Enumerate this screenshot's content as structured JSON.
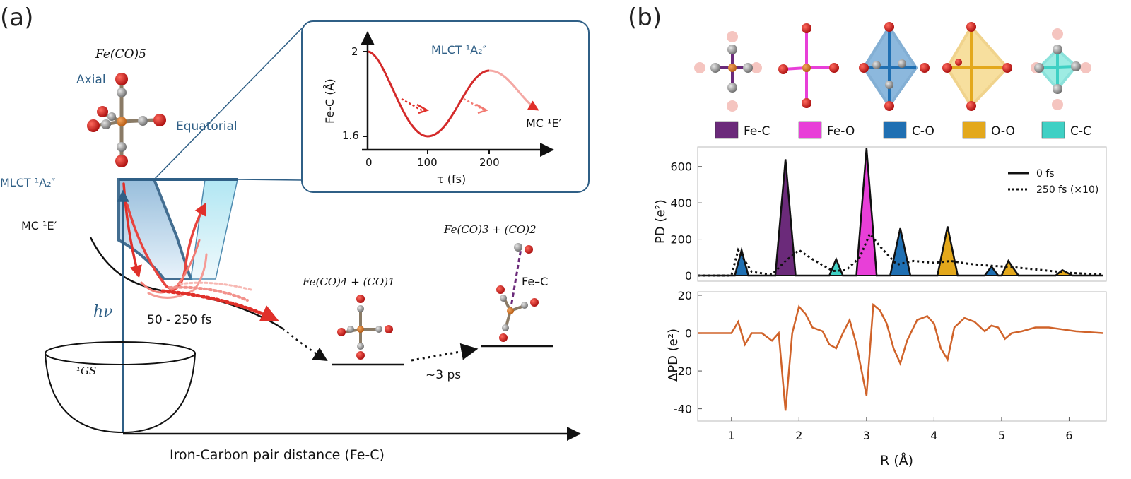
{
  "panel_a": {
    "label": "(a)",
    "molecule_title": "Fe(CO)5",
    "axial_label": "Axial",
    "equatorial_label": "Equatorial",
    "mlct_label": "MLCT ¹A₂″",
    "mc_label": "MC ¹E′",
    "hv_label": "hν",
    "time_label": "50 - 250 fs",
    "gs_label": "¹GS",
    "x_axis_label": "Iron-Carbon pair distance (Fe-C)",
    "product1_label": "Fe(CO)4 + (CO)1",
    "product2_label": "Fe(CO)3 + (CO)2",
    "fec_label": "Fe–C",
    "ps_label": "~3 ps",
    "inset": {
      "ylabel": "Fe-C (Å)",
      "xlabel": "τ (fs)",
      "y_ticks": [
        "2",
        "1.6"
      ],
      "x_ticks": [
        "0",
        "100",
        "200"
      ],
      "mlct_label": "MLCT ¹A₂″",
      "mc_label": "MC ¹E′"
    }
  },
  "panel_b": {
    "label": "(b)",
    "legend": [
      {
        "label": "Fe-C",
        "color": "#6b2a7a"
      },
      {
        "label": "Fe-O",
        "color": "#e83fd8"
      },
      {
        "label": "C-O",
        "color": "#1f6fb2"
      },
      {
        "label": "O-O",
        "color": "#e3a81c"
      },
      {
        "label": "C-C",
        "color": "#3fd0c4"
      }
    ]
  },
  "chart_data": [
    {
      "type": "area",
      "ylabel": "PD (e²)",
      "ylim": [
        0,
        700
      ],
      "y_ticks": [
        "600",
        "400",
        "200",
        "0"
      ],
      "series": [
        {
          "name": "0 fs",
          "x": [
            0.5,
            1.05,
            1.15,
            1.25,
            1.65,
            1.8,
            1.95,
            2.45,
            2.55,
            2.65,
            2.85,
            3.0,
            3.15,
            3.35,
            3.5,
            3.65,
            4.05,
            4.2,
            4.35,
            4.75,
            4.85,
            4.95,
            5.0,
            5.1,
            5.25,
            5.8,
            5.9,
            6.05,
            6.5
          ],
          "y": [
            0,
            0,
            140,
            0,
            0,
            640,
            0,
            0,
            90,
            0,
            0,
            700,
            0,
            0,
            260,
            0,
            0,
            270,
            0,
            0,
            50,
            0,
            0,
            80,
            0,
            0,
            30,
            0,
            0
          ]
        },
        {
          "name": "250 fs (×10)",
          "x": [
            0.5,
            1.0,
            1.1,
            1.3,
            1.6,
            1.8,
            2.0,
            2.2,
            2.5,
            2.7,
            2.9,
            3.05,
            3.2,
            3.45,
            3.7,
            4.0,
            4.25,
            4.5,
            4.8,
            5.2,
            5.6,
            6.0,
            6.5
          ],
          "y": [
            0,
            0,
            140,
            20,
            5,
            80,
            140,
            90,
            25,
            30,
            100,
            230,
            160,
            60,
            80,
            70,
            80,
            65,
            55,
            45,
            30,
            15,
            5
          ]
        }
      ]
    },
    {
      "type": "line",
      "ylabel": "ΔPD (e²)",
      "xlabel": "R (Å)",
      "xlim": [
        0.5,
        6.5
      ],
      "ylim": [
        -45,
        20
      ],
      "x_ticks": [
        "1",
        "2",
        "3",
        "4",
        "5",
        "6"
      ],
      "y_ticks": [
        "20",
        "0",
        "-20",
        "-40"
      ],
      "series": [
        {
          "name": "ΔPD",
          "x": [
            0.5,
            1.0,
            1.1,
            1.2,
            1.3,
            1.45,
            1.6,
            1.7,
            1.8,
            1.9,
            2.0,
            2.1,
            2.2,
            2.35,
            2.45,
            2.55,
            2.65,
            2.75,
            2.85,
            3.0,
            3.1,
            3.2,
            3.3,
            3.4,
            3.5,
            3.6,
            3.75,
            3.9,
            4.0,
            4.1,
            4.2,
            4.3,
            4.45,
            4.6,
            4.75,
            4.85,
            4.95,
            5.05,
            5.15,
            5.3,
            5.5,
            5.7,
            5.9,
            6.1,
            6.5
          ],
          "y": [
            0,
            0,
            6,
            -6,
            0,
            0,
            -4,
            0,
            -41,
            0,
            14,
            10,
            3,
            1,
            -6,
            -8,
            0,
            7,
            -6,
            -33,
            15,
            12,
            5,
            -8,
            -16,
            -4,
            7,
            9,
            5,
            -8,
            -14,
            3,
            8,
            6,
            1,
            4,
            3,
            -3,
            0,
            1,
            3,
            3,
            2,
            1,
            0
          ]
        }
      ]
    }
  ]
}
